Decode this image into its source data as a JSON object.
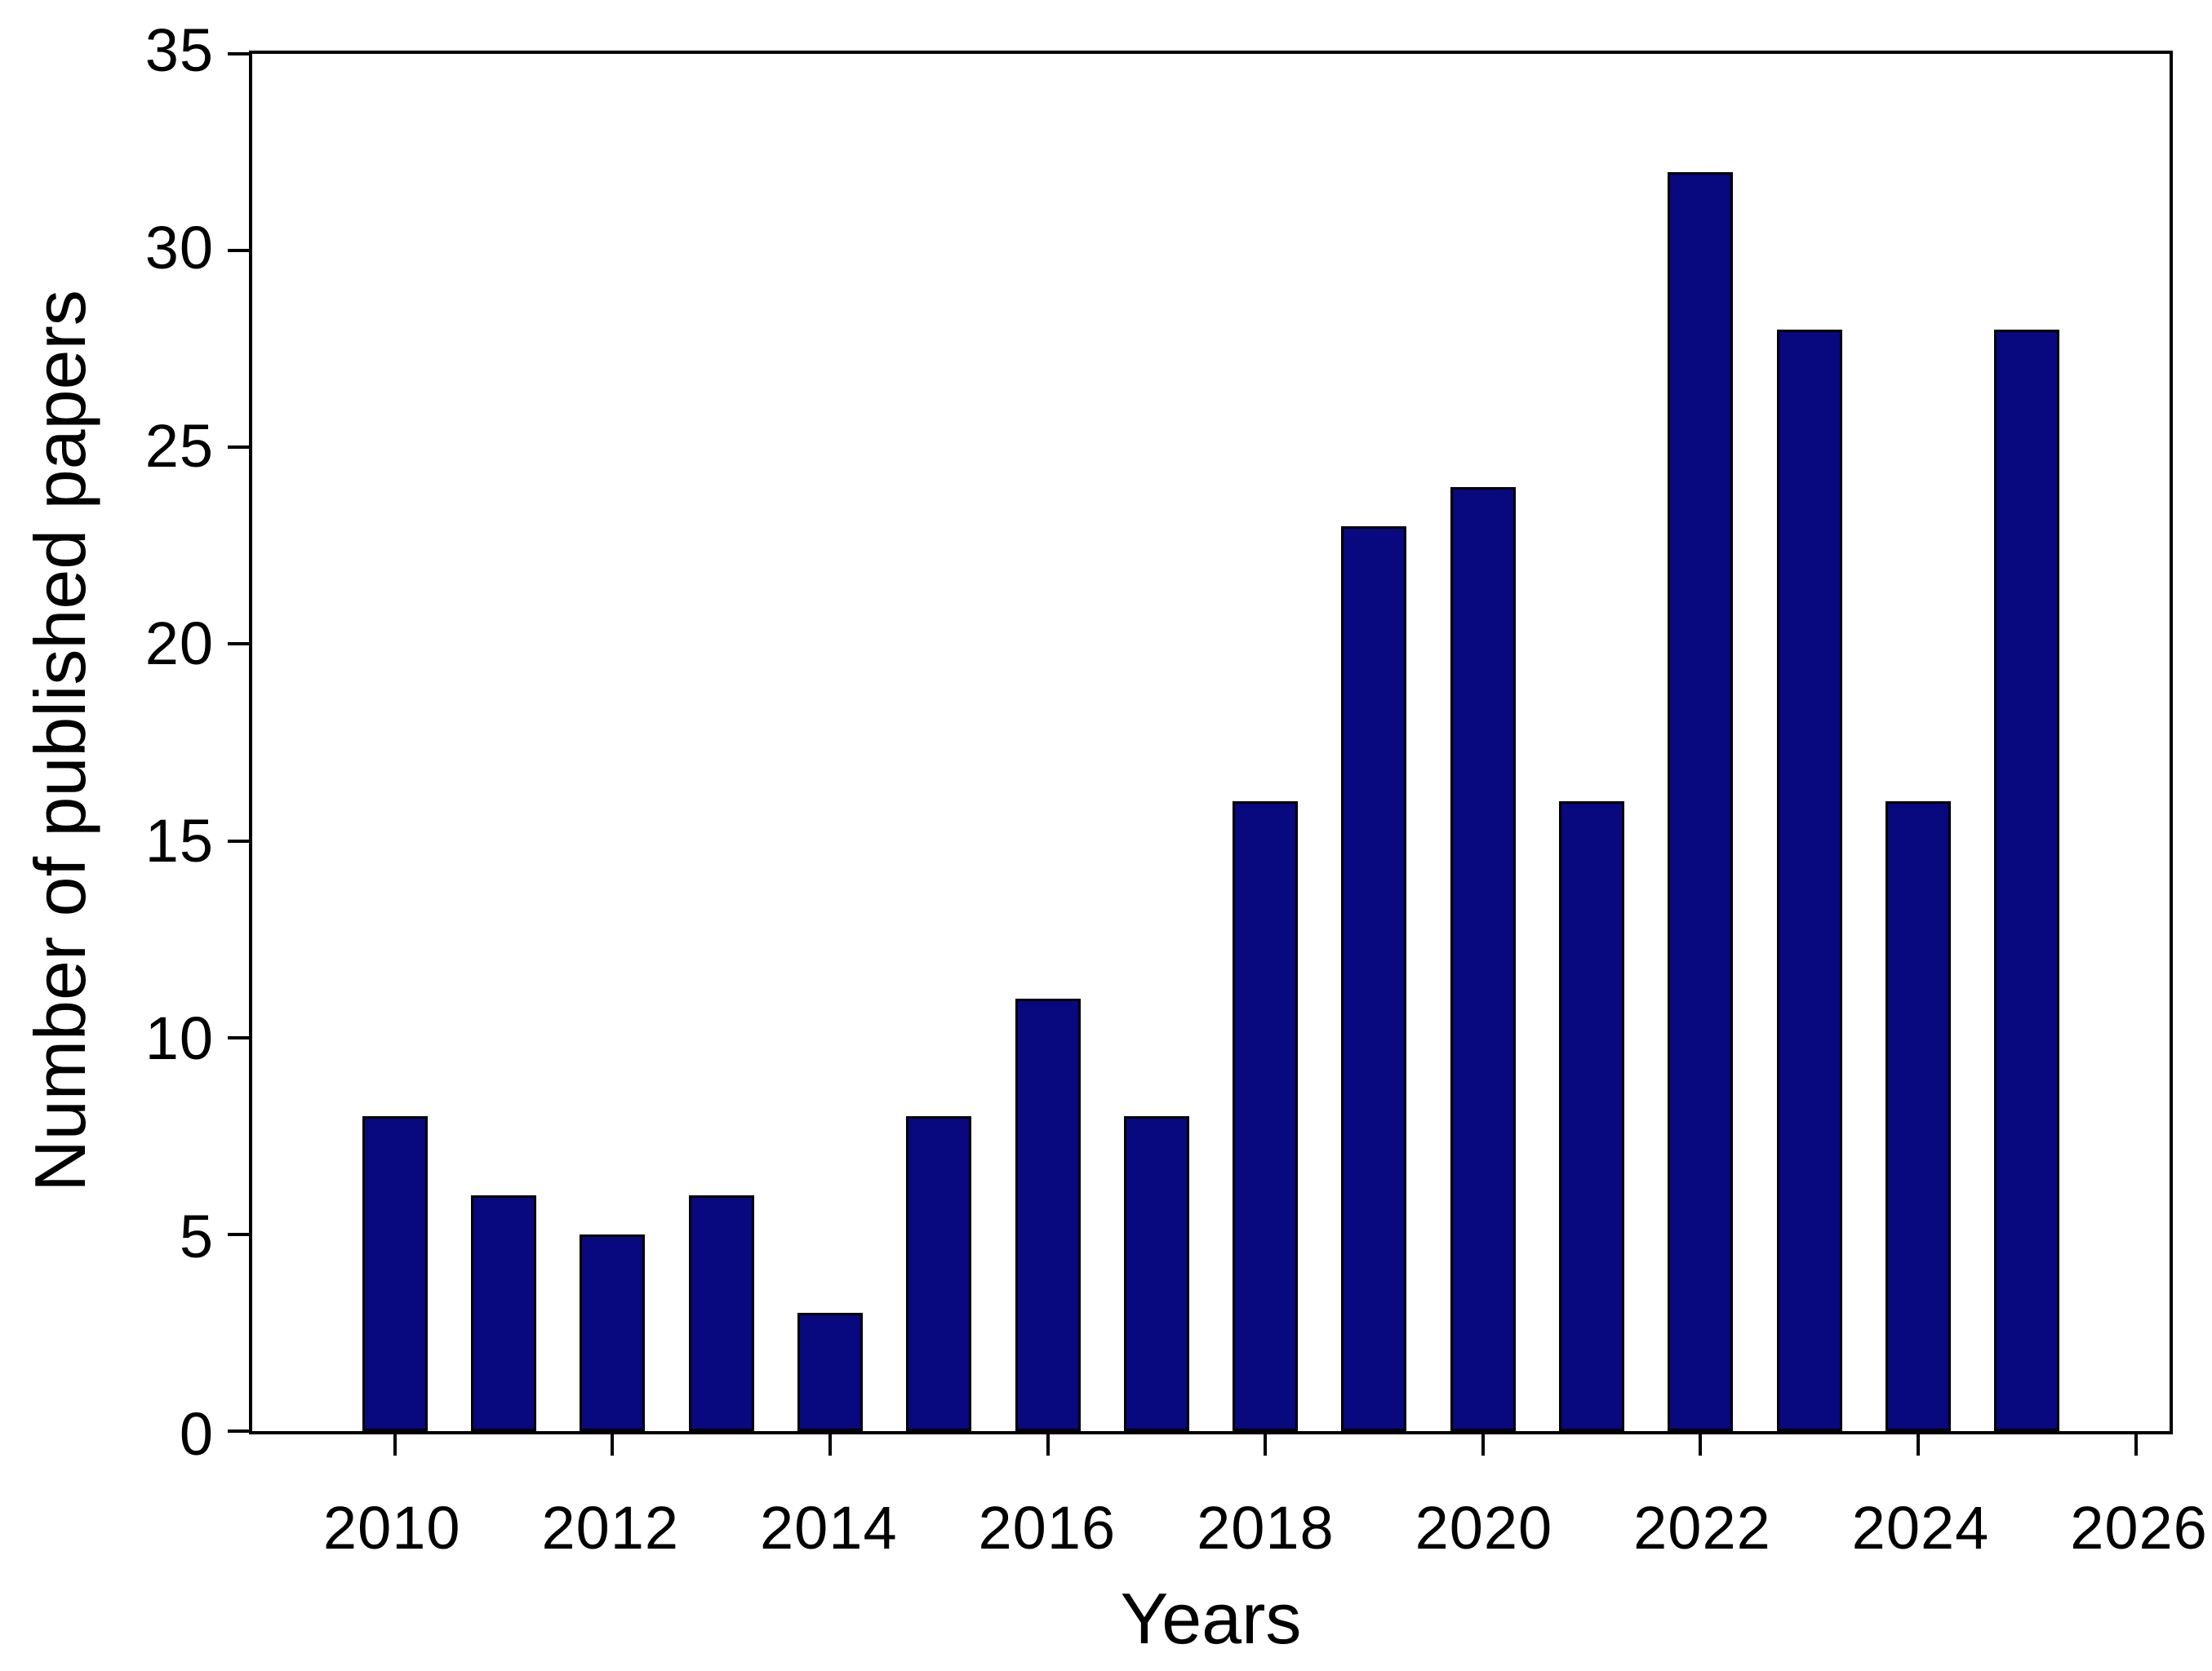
{
  "chart_data": {
    "type": "bar",
    "title": "",
    "xlabel": "Years",
    "ylabel": "Number of published papers",
    "x": [
      2010,
      2011,
      2012,
      2013,
      2014,
      2015,
      2016,
      2017,
      2018,
      2019,
      2020,
      2021,
      2022,
      2023,
      2024,
      2025
    ],
    "values": [
      8,
      6,
      5,
      6,
      3,
      8,
      11,
      8,
      16,
      23,
      24,
      16,
      32,
      28,
      16,
      28
    ],
    "series": [
      {
        "name": "Number of published papers",
        "values": [
          8,
          6,
          5,
          6,
          3,
          8,
          11,
          8,
          16,
          23,
          24,
          16,
          32,
          28,
          16,
          28
        ]
      }
    ],
    "xlim": [
      2008.69,
      2026.31
    ],
    "ylim": [
      0,
      35
    ],
    "x_ticks": [
      2010,
      2012,
      2014,
      2016,
      2018,
      2020,
      2022,
      2024,
      2026
    ],
    "y_ticks": [
      0,
      5,
      10,
      15,
      20,
      25,
      30,
      35
    ],
    "grid": false,
    "legend_position": "none",
    "bar_color": "#08087f",
    "bar_edge_color": "#000000",
    "axis_color": "#000000",
    "background_color": "#ffffff"
  }
}
